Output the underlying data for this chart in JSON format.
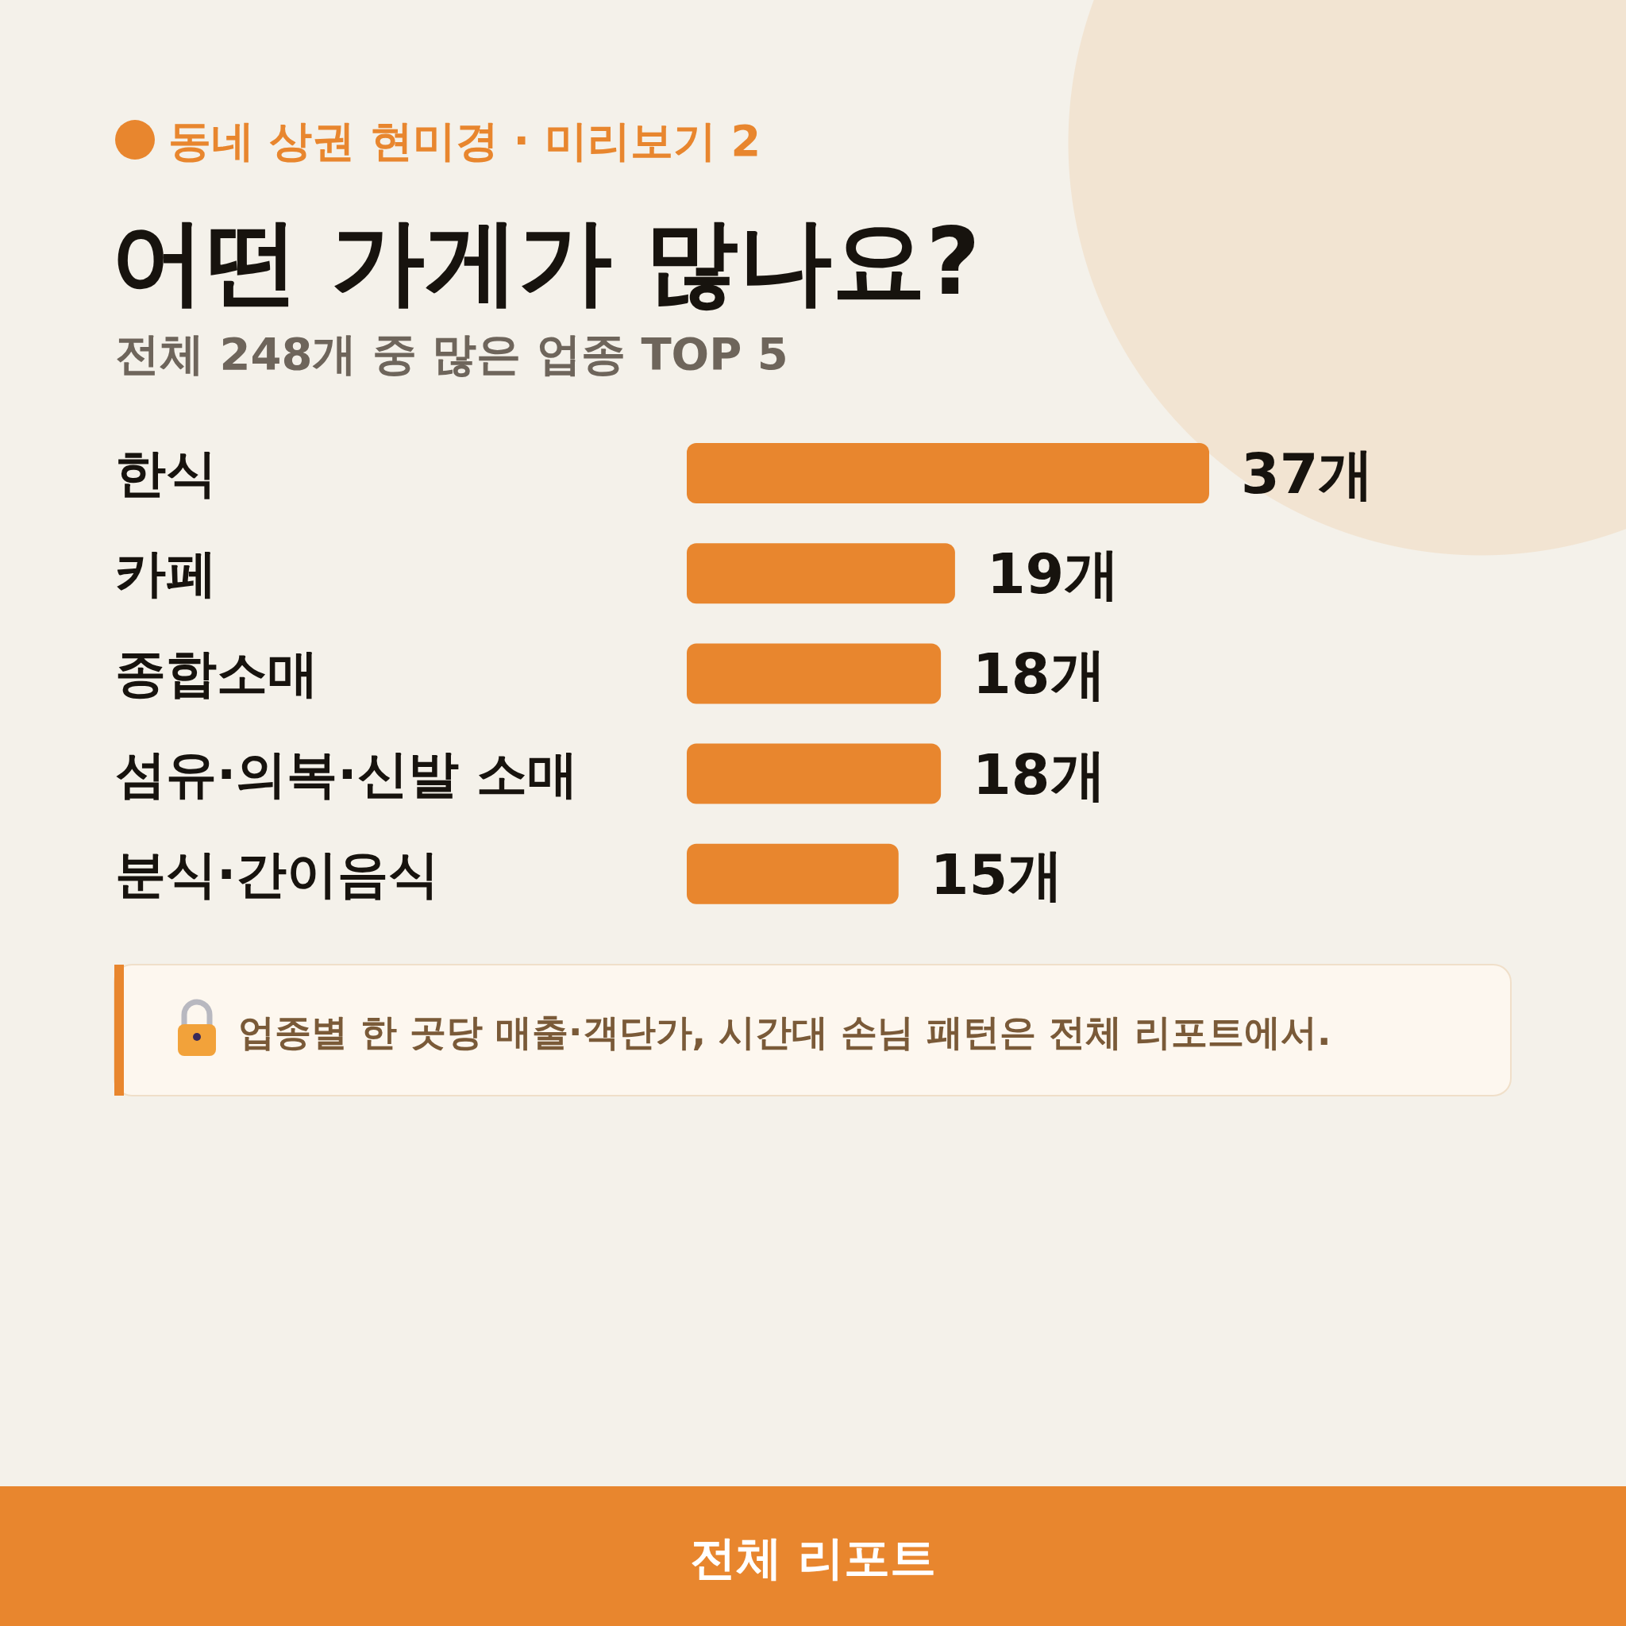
{
  "chart_data": {
    "type": "bar",
    "orientation": "horizontal",
    "title": "어떤 가게가 많나요?",
    "subtitle": "전체 248개 중 많은 업종 TOP 5",
    "annotations": [
      "동네 상권 현미경 · 미리보기 2",
      "업종별 한 곳당 매출·객단가, 시간대 손님 패턴은 전체 리포트에서.",
      "전체 리포트"
    ],
    "categories": [
      "한식",
      "카페",
      "종합소매",
      "섬유·의복·신발 소매",
      "분식·간이음식"
    ],
    "values": [
      37,
      19,
      18,
      18,
      15
    ],
    "value_labels": [
      "37개",
      "19개",
      "18개",
      "18개",
      "15개"
    ],
    "color": "#e8862e"
  }
}
